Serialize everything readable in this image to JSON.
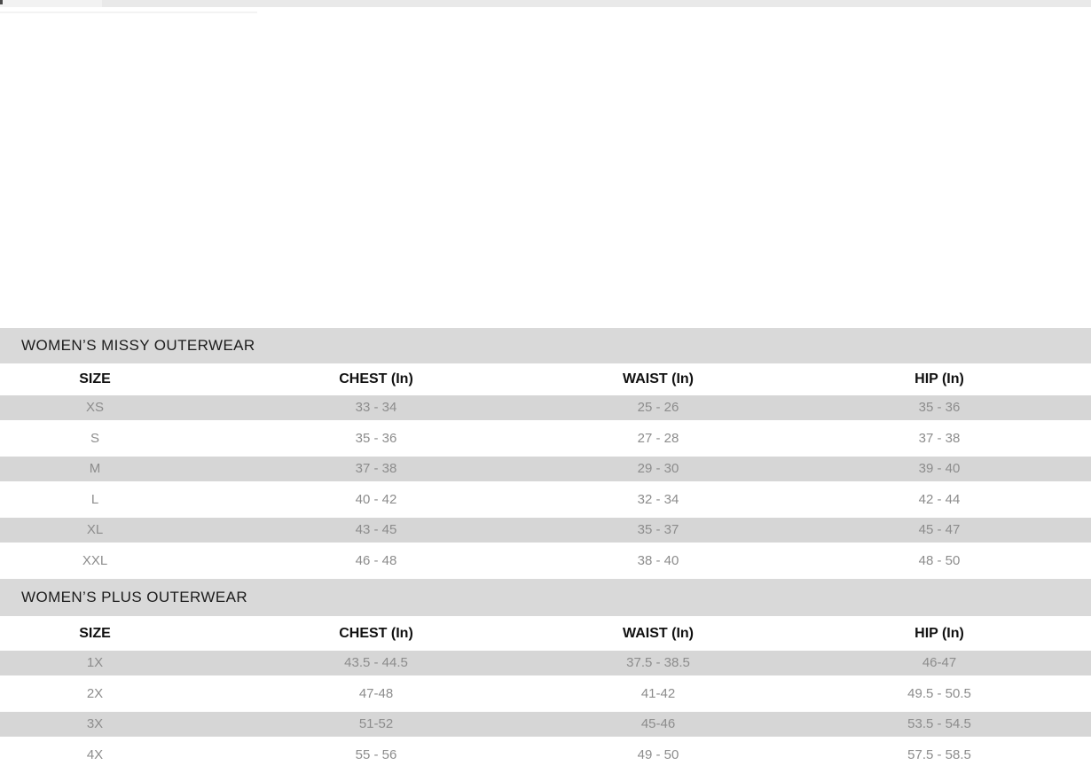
{
  "colors": {
    "top_strip": "#e9e9e9",
    "section_band": "#d9d9d9",
    "row_stripe": "#d6d6d6",
    "row_text": "#8c8c8c",
    "header_text": "#111111",
    "title_text": "#1c1c1c"
  },
  "tables": [
    {
      "section_title": "WOMEN’S MISSY OUTERWEAR",
      "columns": [
        "SIZE",
        "CHEST (In)",
        "WAIST (In)",
        "HIP (In)"
      ],
      "rows": [
        [
          "XS",
          "33 - 34",
          "25 - 26",
          "35 - 36"
        ],
        [
          "S",
          "35 - 36",
          "27 - 28",
          "37 - 38"
        ],
        [
          "M",
          "37 - 38",
          "29 - 30",
          "39 - 40"
        ],
        [
          "L",
          "40 - 42",
          "32 - 34",
          "42 - 44"
        ],
        [
          "XL",
          "43 - 45",
          "35 - 37",
          "45 - 47"
        ],
        [
          "XXL",
          "46 - 48",
          "38 - 40",
          "48 - 50"
        ]
      ]
    },
    {
      "section_title": "WOMEN’S PLUS OUTERWEAR",
      "columns": [
        "SIZE",
        "CHEST (In)",
        "WAIST (In)",
        "HIP (In)"
      ],
      "rows": [
        [
          "1X",
          "43.5 - 44.5",
          "37.5 - 38.5",
          "46-47"
        ],
        [
          "2X",
          "47-48",
          "41-42",
          "49.5 - 50.5"
        ],
        [
          "3X",
          "51-52",
          "45-46",
          "53.5 - 54.5"
        ],
        [
          "4X",
          "55 - 56",
          "49 - 50",
          "57.5 - 58.5"
        ]
      ]
    }
  ]
}
